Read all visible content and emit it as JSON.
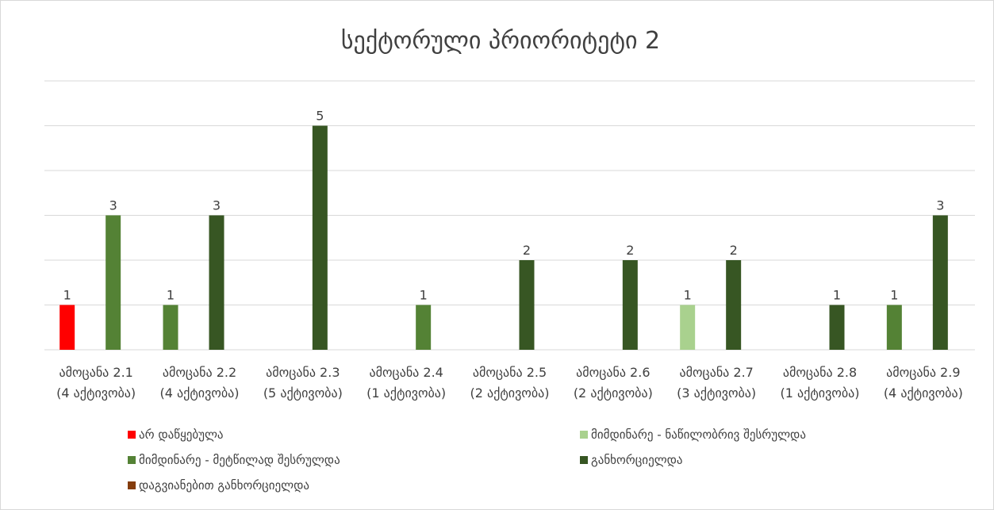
{
  "chart_data": {
    "type": "bar",
    "title": "სექტორული პრიორიტეტი 2",
    "xlabel": "",
    "ylabel": "",
    "ylim": [
      0,
      6
    ],
    "grid": true,
    "legend_position": "bottom",
    "categories": [
      [
        "ამოცანა 2.1",
        "(4 აქტივობა)"
      ],
      [
        "ამოცანა 2.2",
        "(4 აქტივობა)"
      ],
      [
        "ამოცანა 2.3",
        "(5 აქტივობა)"
      ],
      [
        "ამოცანა 2.4",
        "(1 აქტივობა)"
      ],
      [
        "ამოცანა 2.5",
        "(2 აქტივობა)"
      ],
      [
        "ამოცანა 2.6",
        "(2 აქტივობა)"
      ],
      [
        "ამოცანა 2.7",
        "(3 აქტივობა)"
      ],
      [
        "ამოცანა 2.8",
        "(1 აქტივობა)"
      ],
      [
        "ამოცანა 2.9",
        "(4 აქტივობა)"
      ]
    ],
    "series": [
      {
        "name": "არ დაწყებულა",
        "color": "#ff0000",
        "values": [
          1,
          null,
          null,
          null,
          null,
          null,
          null,
          null,
          null
        ]
      },
      {
        "name": "მიმდინარე - ნაწილობრივ შესრულდა",
        "color": "#a9d18e",
        "values": [
          null,
          null,
          null,
          null,
          null,
          null,
          1,
          null,
          null
        ]
      },
      {
        "name": "მიმდინარე - მეტწილად შესრულდა",
        "color": "#548235",
        "values": [
          3,
          1,
          null,
          1,
          null,
          null,
          null,
          null,
          1
        ]
      },
      {
        "name": "განხორციელდა",
        "color": "#375623",
        "values": [
          null,
          3,
          5,
          null,
          2,
          2,
          2,
          1,
          3
        ]
      },
      {
        "name": "დაგვიანებით განხორციელდა",
        "color": "#843c0c",
        "values": [
          null,
          null,
          null,
          null,
          null,
          null,
          null,
          null,
          null
        ]
      }
    ]
  }
}
